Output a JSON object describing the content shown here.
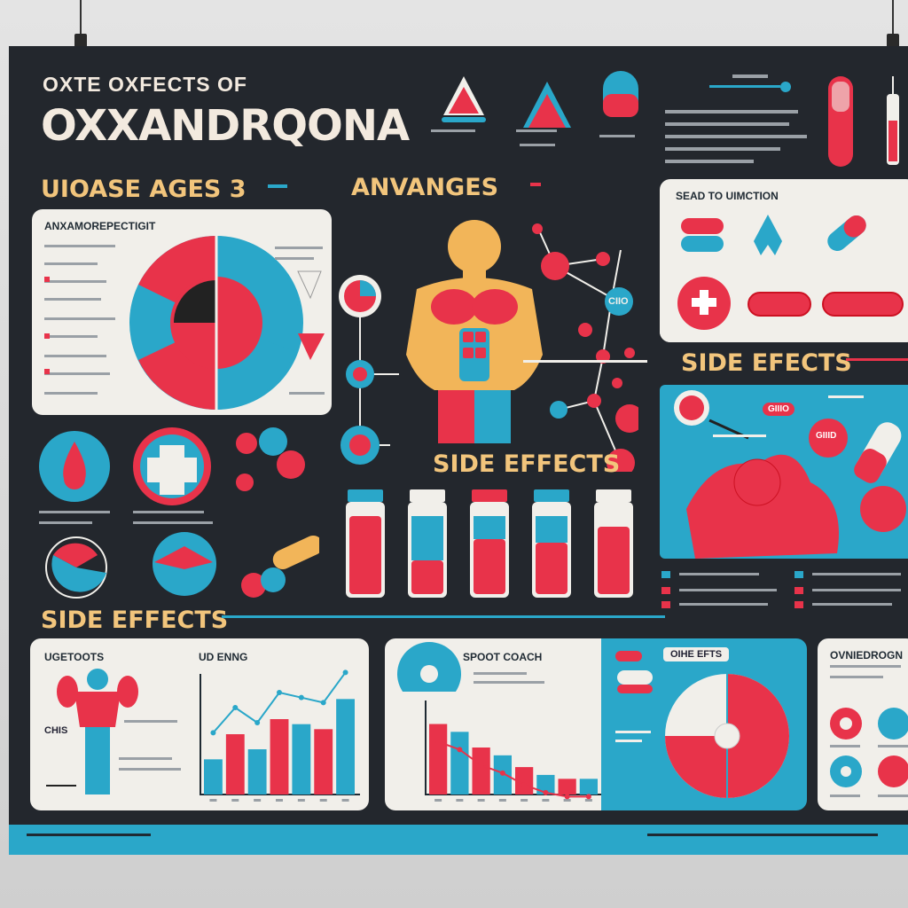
{
  "poster": {
    "subtitle": "OXTE OXFECTS OF",
    "title": "OXXANDRQONA",
    "section_uses": "UIOASE AGES 3",
    "section_advantages": "ANVANGES",
    "section_side_effects_1": "SIDE EFECTS",
    "section_side_effects_2": "SIDE EFFECTS",
    "section_side_effects_3": "SIDE EFFECTS",
    "pie_card_title": "ANXAMOREPECTIGIT",
    "function_card_title": "SEAD TO UIMCTION",
    "molecule_label": "CIIO",
    "side_effect_tag": "GIIIO",
    "side_effect_tag_2": "GIIID",
    "bottom_card_1": {
      "title": "UGETOOTS",
      "chart_title": "UD ENNG",
      "label_a": "CHIS"
    },
    "bottom_card_2": {
      "title": "SPOOT COACH"
    },
    "bottom_card_3": {
      "title": "OIHE EFTS"
    },
    "bottom_card_4": {
      "title": "OVNIEDROGN"
    }
  },
  "colors": {
    "background": "#23272d",
    "red": "#e8334a",
    "blue": "#2aa7c9",
    "cream": "#f1efea",
    "gold": "#f2c57c"
  },
  "chart_data": [
    {
      "type": "bar",
      "title": "UD ENNG",
      "categories": [
        "1",
        "2",
        "3",
        "4",
        "5",
        "6",
        "7"
      ],
      "series": [
        {
          "values": [
            3.5,
            6,
            4.5,
            7.5,
            7,
            6.5,
            9.5
          ]
        }
      ],
      "ylim": [
        0,
        12
      ]
    },
    {
      "type": "bar",
      "title": "SPOOT COACH",
      "categories": [
        "1",
        "2",
        "3",
        "4",
        "5",
        "6",
        "7",
        "8"
      ],
      "series": [
        {
          "values": [
            9,
            8,
            6,
            5,
            3.5,
            2.5,
            2,
            2
          ]
        }
      ],
      "ylim": [
        0,
        12
      ]
    }
  ],
  "icons": [
    "pill-icon",
    "flask-icon",
    "syringe-icon",
    "blood-drop-icon",
    "medical-cross-icon",
    "ribbon-icon",
    "muscle-figure-icon",
    "vial-icon",
    "molecule-icon"
  ]
}
